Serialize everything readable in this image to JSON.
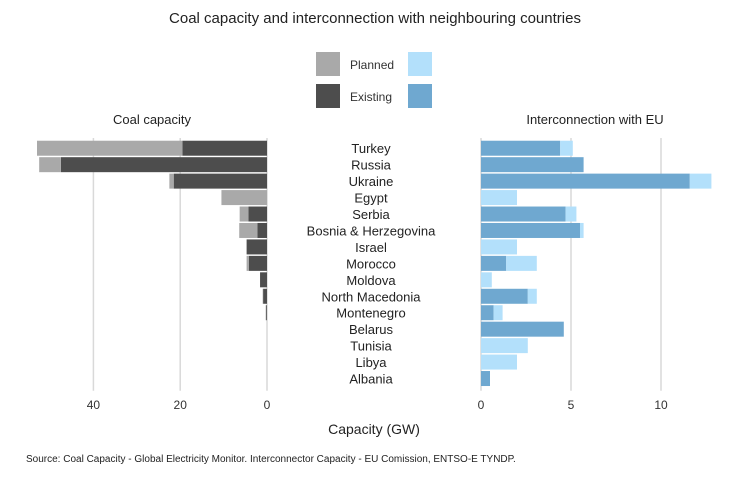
{
  "chart_data": {
    "type": "bar",
    "title": "Coal capacity and interconnection with neighbouring countries",
    "xlabel": "Capacity (GW)",
    "source": "Source:  Coal Capacity - Global Electricity Monitor. Interconnector Capacity - EU Comission, ENTSO-E TYNDP.",
    "countries": [
      "Turkey",
      "Russia",
      "Ukraine",
      "Egypt",
      "Serbia",
      "Bosnia & Herzegovina",
      "Israel",
      "Morocco",
      "Moldova",
      "North Macedonia",
      "Montenegro",
      "Belarus",
      "Tunisia",
      "Libya",
      "Albania"
    ],
    "legend": {
      "planned_label": "Planned",
      "existing_label": "Existing",
      "coal_colors": {
        "planned": "#a9a9a9",
        "existing": "#4d4d4d"
      },
      "ic_colors": {
        "planned": "#b3e0fb",
        "existing": "#6fa8d0"
      }
    },
    "panels": [
      {
        "id": "coal",
        "title": "Coal capacity",
        "direction": "left",
        "xlim": [
          0,
          53
        ],
        "ticks": [
          0,
          20,
          40
        ],
        "tick_labels": [
          "0",
          "20",
          "40"
        ],
        "series": [
          {
            "name": "Existing",
            "values": [
              19.5,
              47.5,
              21.5,
              0,
              4.3,
              2.2,
              4.7,
              4.2,
              1.6,
              0.9,
              0.2,
              0,
              0,
              0,
              0
            ]
          },
          {
            "name": "Planned",
            "values": [
              33.5,
              5.0,
              1.0,
              10.5,
              2.0,
              4.2,
              0,
              0.5,
              0,
              0.1,
              0.1,
              0,
              0,
              0,
              0
            ]
          }
        ]
      },
      {
        "id": "interconnection",
        "title": "Interconnection with EU",
        "direction": "right",
        "xlim": [
          0,
          13
        ],
        "ticks": [
          0,
          5,
          10
        ],
        "tick_labels": [
          "0",
          "5",
          "10"
        ],
        "series": [
          {
            "name": "Existing",
            "values": [
              4.4,
              5.7,
              11.6,
              0,
              4.7,
              5.5,
              0,
              1.4,
              0,
              2.6,
              0.7,
              4.6,
              0,
              0,
              0.5
            ]
          },
          {
            "name": "Planned",
            "values": [
              0.7,
              0,
              1.2,
              2.0,
              0.6,
              0.2,
              2.0,
              1.7,
              0.6,
              0.5,
              0.5,
              0,
              2.6,
              2.0,
              0
            ]
          }
        ]
      }
    ]
  }
}
